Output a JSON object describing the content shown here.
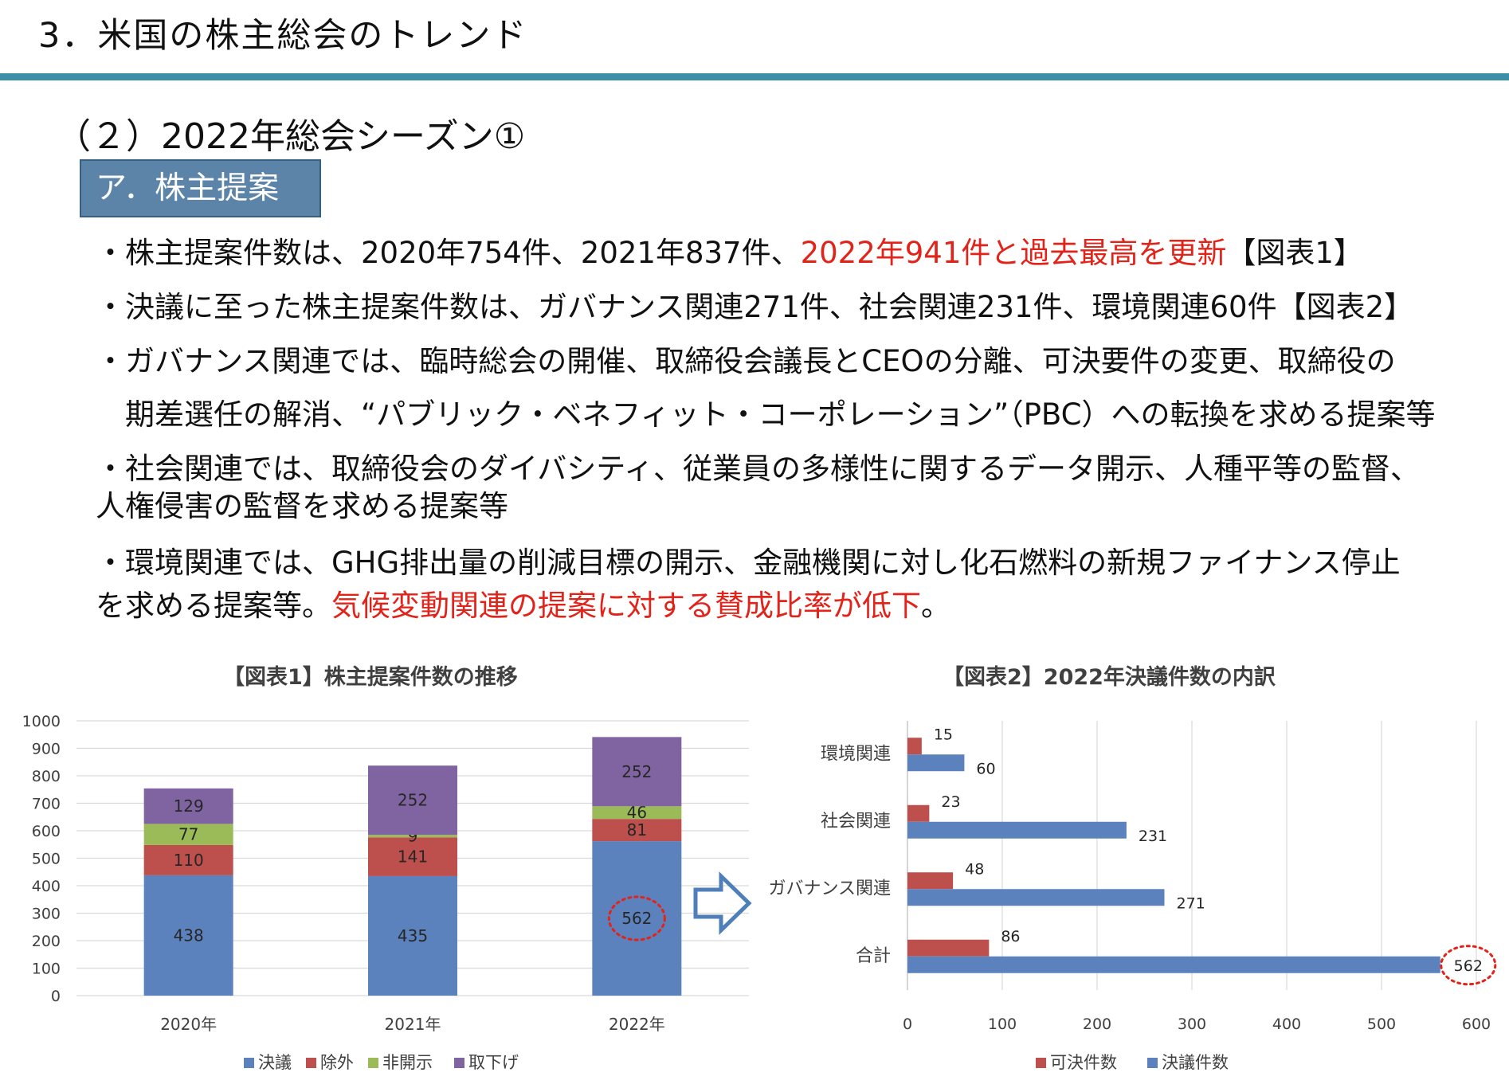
{
  "header": {
    "title": "3．米国の株主総会のトレンド"
  },
  "section": {
    "title": "（２）2022年総会シーズン①",
    "subheading": "ア．株主提案"
  },
  "bullets": [
    {
      "parts": [
        {
          "text": "・株主提案件数は、2020年754件、2021年837件、"
        },
        {
          "text": "2022年941件と過去最高を更新",
          "red": true
        },
        {
          "text": "【図表1】"
        }
      ]
    },
    {
      "parts": [
        {
          "text": "・決議に至った株主提案件数は、ガバナンス関連271件、社会関連231件、環境関連60件【図表2】"
        }
      ]
    },
    {
      "parts": [
        {
          "text": "・ガバナンス関連では、臨時総会の開催、取締役会議長とCEOの分離、可決要件の変更、取締役の"
        }
      ]
    },
    {
      "parts": [
        {
          "text": "　期差選任の解消、“パブリック・ベネフィット・コーポレーション”（PBC）への転換を求める提案等"
        }
      ]
    },
    {
      "parts": [
        {
          "text": "・社会関連では、取締役会のダイバシティ、従業員の多様性に関するデータ開示、人種平等の監督、"
        }
      ]
    },
    {
      "parts": [
        {
          "text": "人権侵害の監督を求める提案等"
        }
      ]
    },
    {
      "parts": [
        {
          "text": "・環境関連では、GHG排出量の削減目標の開示、金融機関に対し化石燃料の新規ファイナンス停止"
        }
      ]
    },
    {
      "parts": [
        {
          "text": "を求める提案等。"
        },
        {
          "text": "気候変動関連の提案に対する賛成比率が低下",
          "red": true
        },
        {
          "text": "。"
        }
      ]
    }
  ],
  "chart_data": [
    {
      "type": "bar",
      "stacked": true,
      "title": "【図表1】株主提案件数の推移",
      "categories": [
        "2020年",
        "2021年",
        "2022年"
      ],
      "series": [
        {
          "name": "決議",
          "color": "#5b82bd",
          "values": [
            438,
            435,
            562
          ]
        },
        {
          "name": "除外",
          "color": "#bd4f4c",
          "values": [
            110,
            141,
            81
          ]
        },
        {
          "name": "非開示",
          "color": "#9bbb59",
          "values": [
            77,
            9,
            46
          ]
        },
        {
          "name": "取下げ",
          "color": "#8064a2",
          "values": [
            129,
            252,
            252
          ]
        }
      ],
      "ylim": [
        0,
        1000
      ],
      "yticks": [
        "0",
        "100",
        "200",
        "300",
        "400",
        "500",
        "600",
        "700",
        "800",
        "900",
        "1000"
      ],
      "grid": true,
      "legend": "bottom",
      "highlight": {
        "category": "2022年",
        "series": "決議",
        "value": "562"
      }
    },
    {
      "type": "bar",
      "orientation": "horizontal",
      "title": "【図表2】2022年決議件数の内訳",
      "categories": [
        "環境関連",
        "社会関連",
        "ガバナンス関連",
        "合計"
      ],
      "series": [
        {
          "name": "可決件数",
          "color": "#bd4f4c",
          "values": [
            15,
            23,
            48,
            86
          ]
        },
        {
          "name": "決議件数",
          "color": "#5b82bd",
          "values": [
            60,
            231,
            271,
            562
          ]
        }
      ],
      "xlim": [
        0,
        600
      ],
      "xticks": [
        "0",
        "100",
        "200",
        "300",
        "400",
        "500",
        "600"
      ],
      "grid": true,
      "legend": "bottom",
      "highlight": {
        "category": "合計",
        "series": "決議件数",
        "value": "562"
      }
    }
  ]
}
